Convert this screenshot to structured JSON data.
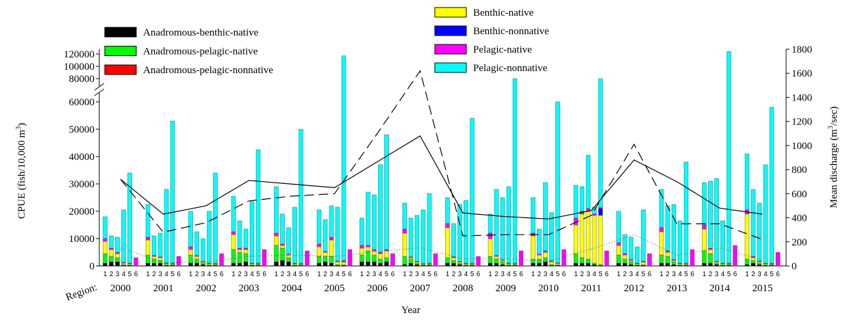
{
  "chart_data": {
    "type": "bar",
    "stacked": true,
    "ylabel": [
      "CPUE (fish/10,000 m",
      "3",
      ")"
    ],
    "y2label": [
      "Mean discharge (m",
      "3",
      "/sec)"
    ],
    "xlabel": "Year",
    "region_label": "Region:",
    "regions": [
      "1",
      "2",
      "3",
      "4",
      "5",
      "6"
    ],
    "years": [
      "2000",
      "2001",
      "2002",
      "2003",
      "2004",
      "2005",
      "2006",
      "2007",
      "2008",
      "2009",
      "2010",
      "2011",
      "2012",
      "2013",
      "2014",
      "2015"
    ],
    "ylim": [
      0,
      120000
    ],
    "ybreak": [
      60000,
      80000
    ],
    "yticks": [
      0,
      10000,
      20000,
      30000,
      40000,
      50000,
      60000,
      80000,
      100000,
      120000
    ],
    "y2lim": [
      0,
      1800
    ],
    "y2ticks": [
      0,
      200,
      400,
      600,
      800,
      1000,
      1200,
      1400,
      1600,
      1800
    ],
    "series": [
      {
        "name": "Anadromous-benthic-native",
        "color": "#000000",
        "values": [
          [
            1000,
            1500,
            1500,
            200,
            200,
            0
          ],
          [
            1000,
            1000,
            1000,
            200,
            200,
            0
          ],
          [
            1000,
            1000,
            500,
            200,
            200,
            0
          ],
          [
            1000,
            1000,
            1500,
            200,
            200,
            0
          ],
          [
            1500,
            2000,
            1500,
            200,
            200,
            0
          ],
          [
            1000,
            1500,
            1000,
            200,
            200,
            0
          ],
          [
            1500,
            1500,
            1500,
            1000,
            1500,
            0
          ],
          [
            500,
            1000,
            500,
            200,
            200,
            0
          ],
          [
            1000,
            1000,
            500,
            200,
            200,
            0
          ],
          [
            1000,
            1000,
            500,
            200,
            200,
            0
          ],
          [
            1000,
            1000,
            1500,
            200,
            200,
            0
          ],
          [
            1000,
            1000,
            1000,
            500,
            200,
            0
          ],
          [
            1000,
            1000,
            500,
            200,
            200,
            0
          ],
          [
            1000,
            1000,
            500,
            200,
            200,
            0
          ],
          [
            1000,
            1000,
            500,
            200,
            200,
            0
          ],
          [
            500,
            1000,
            500,
            200,
            200,
            0
          ]
        ]
      },
      {
        "name": "Anadromous-pelagic-native",
        "color": "#00ff00",
        "values": [
          [
            3500,
            2000,
            1500,
            300,
            300,
            0
          ],
          [
            3000,
            1500,
            1000,
            300,
            200,
            0
          ],
          [
            3000,
            1500,
            500,
            300,
            200,
            0
          ],
          [
            5000,
            4000,
            3000,
            300,
            200,
            0
          ],
          [
            6000,
            4500,
            1500,
            300,
            200,
            0
          ],
          [
            2500,
            2000,
            2500,
            300,
            200,
            0
          ],
          [
            2500,
            4000,
            2500,
            1500,
            1500,
            0
          ],
          [
            3000,
            1500,
            500,
            200,
            200,
            0
          ],
          [
            2000,
            1000,
            500,
            300,
            200,
            0
          ],
          [
            2500,
            1500,
            1000,
            300,
            200,
            0
          ],
          [
            1500,
            1500,
            1500,
            300,
            200,
            0
          ],
          [
            3500,
            2000,
            1500,
            500,
            300,
            0
          ],
          [
            3000,
            1500,
            1000,
            300,
            200,
            0
          ],
          [
            3000,
            2500,
            1000,
            300,
            200,
            0
          ],
          [
            4500,
            3500,
            500,
            300,
            200,
            0
          ],
          [
            2000,
            1000,
            500,
            300,
            200,
            0
          ]
        ]
      },
      {
        "name": "Anadromous-pelagic-nonnative",
        "color": "#ff0000",
        "values": [
          [
            0,
            0,
            0,
            0,
            0,
            0
          ],
          [
            0,
            0,
            0,
            0,
            0,
            0
          ],
          [
            0,
            0,
            0,
            0,
            0,
            0
          ],
          [
            0,
            0,
            0,
            0,
            0,
            0
          ],
          [
            0,
            0,
            0,
            0,
            0,
            0
          ],
          [
            0,
            0,
            0,
            0,
            0,
            0
          ],
          [
            0,
            0,
            0,
            0,
            0,
            0
          ],
          [
            0,
            0,
            0,
            0,
            0,
            0
          ],
          [
            0,
            0,
            0,
            0,
            0,
            0
          ],
          [
            0,
            0,
            0,
            0,
            0,
            0
          ],
          [
            0,
            0,
            0,
            0,
            0,
            0
          ],
          [
            0,
            0,
            0,
            0,
            0,
            0
          ],
          [
            0,
            0,
            0,
            0,
            0,
            0
          ],
          [
            0,
            0,
            0,
            0,
            0,
            0
          ],
          [
            0,
            0,
            0,
            0,
            0,
            0
          ],
          [
            0,
            0,
            0,
            0,
            0,
            0
          ]
        ]
      },
      {
        "name": "Benthic-native",
        "color": "#ffff00",
        "values": [
          [
            4500,
            2500,
            1500,
            500,
            300,
            0
          ],
          [
            5500,
            1000,
            1000,
            300,
            300,
            0
          ],
          [
            2000,
            1000,
            500,
            300,
            300,
            0
          ],
          [
            5500,
            1000,
            1500,
            300,
            300,
            0
          ],
          [
            3500,
            1000,
            1000,
            300,
            300,
            0
          ],
          [
            3500,
            1500,
            6000,
            1000,
            1000,
            0
          ],
          [
            2500,
            1500,
            1500,
            2000,
            2500,
            0
          ],
          [
            8500,
            500,
            500,
            300,
            300,
            0
          ],
          [
            11000,
            1000,
            500,
            300,
            300,
            0
          ],
          [
            6500,
            1000,
            500,
            300,
            300,
            0
          ],
          [
            8500,
            1500,
            2000,
            1000,
            500,
            0
          ],
          [
            10500,
            16000,
            17500,
            17500,
            18000,
            0
          ],
          [
            3500,
            1500,
            500,
            300,
            1000,
            0
          ],
          [
            8500,
            1500,
            500,
            300,
            300,
            0
          ],
          [
            8000,
            1500,
            500,
            300,
            300,
            0
          ],
          [
            16500,
            1000,
            500,
            300,
            300,
            0
          ]
        ]
      },
      {
        "name": "Benthic-nonnative",
        "color": "#0000ff",
        "values": [
          [
            0,
            0,
            0,
            0,
            0,
            0
          ],
          [
            0,
            0,
            0,
            0,
            0,
            0
          ],
          [
            0,
            0,
            0,
            0,
            0,
            0
          ],
          [
            0,
            0,
            0,
            0,
            0,
            0
          ],
          [
            0,
            0,
            0,
            0,
            0,
            0
          ],
          [
            0,
            0,
            0,
            0,
            0,
            0
          ],
          [
            0,
            0,
            0,
            0,
            0,
            0
          ],
          [
            0,
            0,
            0,
            0,
            0,
            0
          ],
          [
            0,
            0,
            0,
            0,
            0,
            0
          ],
          [
            0,
            0,
            0,
            0,
            0,
            0
          ],
          [
            0,
            0,
            0,
            0,
            0,
            0
          ],
          [
            0,
            0,
            0,
            0,
            2500,
            0
          ],
          [
            0,
            0,
            0,
            0,
            0,
            0
          ],
          [
            0,
            0,
            0,
            0,
            0,
            0
          ],
          [
            0,
            0,
            0,
            0,
            0,
            0
          ],
          [
            0,
            0,
            0,
            0,
            0,
            0
          ]
        ]
      },
      {
        "name": "Pelagic-native",
        "color": "#ff00ff",
        "values": [
          [
            1000,
            500,
            500,
            300,
            200,
            3000
          ],
          [
            1000,
            300,
            300,
            200,
            300,
            3500
          ],
          [
            1000,
            300,
            200,
            200,
            300,
            4500
          ],
          [
            1000,
            500,
            500,
            200,
            300,
            6000
          ],
          [
            1000,
            500,
            300,
            200,
            300,
            5500
          ],
          [
            1000,
            300,
            1000,
            300,
            600,
            6000
          ],
          [
            1000,
            500,
            500,
            500,
            500,
            4500
          ],
          [
            1500,
            300,
            200,
            200,
            300,
            4500
          ],
          [
            1500,
            300,
            200,
            200,
            300,
            3500
          ],
          [
            2000,
            300,
            200,
            200,
            300,
            5500
          ],
          [
            1000,
            300,
            500,
            300,
            300,
            6000
          ],
          [
            2500,
            1000,
            1000,
            500,
            300,
            5500
          ],
          [
            1000,
            500,
            300,
            200,
            300,
            4500
          ],
          [
            1500,
            500,
            300,
            200,
            300,
            6000
          ],
          [
            1500,
            500,
            200,
            200,
            300,
            7500
          ],
          [
            1500,
            500,
            300,
            200,
            300,
            5000
          ]
        ]
      },
      {
        "name": "Pelagic-nonnative",
        "color": "#00ffff",
        "values": [
          [
            8000,
            4500,
            5500,
            19200,
            33000,
            0
          ],
          [
            12000,
            7200,
            8700,
            27000,
            52000,
            0
          ],
          [
            13000,
            8700,
            8300,
            19000,
            33000,
            0
          ],
          [
            13000,
            10000,
            7000,
            22500,
            41500,
            0
          ],
          [
            17000,
            11000,
            9700,
            20500,
            49000,
            0
          ],
          [
            12500,
            11700,
            11500,
            19700,
            115000,
            0
          ],
          [
            10000,
            19500,
            20000,
            32000,
            42000,
            0
          ],
          [
            9500,
            14200,
            16800,
            19600,
            25500,
            0
          ],
          [
            9500,
            12200,
            20800,
            23000,
            53000,
            0
          ],
          [
            7000,
            24200,
            22800,
            28000,
            79000,
            0
          ],
          [
            13000,
            9200,
            25000,
            17700,
            58800,
            0
          ],
          [
            12000,
            9000,
            19500,
            2500,
            58700,
            0
          ],
          [
            11500,
            7000,
            8200,
            6000,
            18800,
            0
          ],
          [
            14000,
            16500,
            20200,
            15500,
            37000,
            0
          ],
          [
            15500,
            24500,
            30300,
            15500,
            123000,
            0
          ],
          [
            20500,
            24500,
            21200,
            36000,
            57000,
            0
          ]
        ]
      }
    ],
    "lines": [
      {
        "dash": "solid",
        "color": "#000000",
        "axis": "y2",
        "values": [
          720,
          430,
          500,
          710,
          680,
          650,
          865,
          1080,
          440,
          410,
          390,
          460,
          880,
          700,
          480,
          430
        ]
      },
      {
        "dash": "dashed",
        "color": "#000000",
        "axis": "y2",
        "values": [
          720,
          280,
          360,
          540,
          580,
          600,
          1100,
          1620,
          250,
          260,
          260,
          420,
          1010,
          350,
          350,
          220
        ]
      },
      {
        "dash": "dotted",
        "color": "#555555",
        "axis": "y2",
        "values": [
          150,
          30,
          30,
          80,
          90,
          80,
          120,
          150,
          60,
          60,
          40,
          140,
          260,
          90,
          150,
          50
        ]
      }
    ]
  }
}
